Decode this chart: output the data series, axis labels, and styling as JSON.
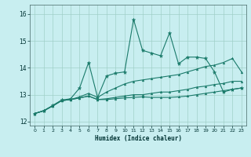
{
  "xlabel": "Humidex (Indice chaleur)",
  "xlim": [
    -0.5,
    23.5
  ],
  "ylim": [
    11.85,
    16.35
  ],
  "yticks": [
    12,
    13,
    14,
    15,
    16
  ],
  "xticks": [
    0,
    1,
    2,
    3,
    4,
    5,
    6,
    7,
    8,
    9,
    10,
    11,
    12,
    13,
    14,
    15,
    16,
    17,
    18,
    19,
    20,
    21,
    22,
    23
  ],
  "bg_color": "#c8eef0",
  "grid_color": "#a0d0c8",
  "line_color": "#1a7a6a",
  "series": [
    {
      "x": [
        0,
        1,
        2,
        3,
        4,
        5,
        6,
        7,
        8,
        9,
        10,
        11,
        12,
        13,
        14,
        15,
        16,
        17,
        18,
        19,
        20,
        21,
        22,
        23
      ],
      "y": [
        12.3,
        12.4,
        12.6,
        12.8,
        12.85,
        13.25,
        14.2,
        12.9,
        13.7,
        13.8,
        13.85,
        15.8,
        14.65,
        14.55,
        14.45,
        15.3,
        14.15,
        14.4,
        14.4,
        14.35,
        13.85,
        13.1,
        13.2,
        13.25
      ],
      "marker": "*",
      "ms": 3.5,
      "lw": 0.8
    },
    {
      "x": [
        0,
        1,
        2,
        3,
        4,
        5,
        6,
        7,
        8,
        9,
        10,
        11,
        12,
        13,
        14,
        15,
        16,
        17,
        18,
        19,
        20,
        21,
        22,
        23
      ],
      "y": [
        12.3,
        12.4,
        12.58,
        12.78,
        12.82,
        12.92,
        13.05,
        12.9,
        13.1,
        13.25,
        13.4,
        13.5,
        13.55,
        13.6,
        13.65,
        13.7,
        13.75,
        13.85,
        13.95,
        14.05,
        14.1,
        14.2,
        14.35,
        13.85
      ],
      "marker": "^",
      "ms": 2.0,
      "lw": 0.8
    },
    {
      "x": [
        0,
        1,
        2,
        3,
        4,
        5,
        6,
        7,
        8,
        9,
        10,
        11,
        12,
        13,
        14,
        15,
        16,
        17,
        18,
        19,
        20,
        21,
        22,
        23
      ],
      "y": [
        12.3,
        12.4,
        12.58,
        12.78,
        12.82,
        12.88,
        12.95,
        12.82,
        12.82,
        12.85,
        12.88,
        12.9,
        12.92,
        12.9,
        12.9,
        12.9,
        12.92,
        12.95,
        13.0,
        13.05,
        13.1,
        13.15,
        13.2,
        13.25
      ],
      "marker": "^",
      "ms": 2.0,
      "lw": 0.8
    },
    {
      "x": [
        0,
        1,
        2,
        3,
        4,
        5,
        6,
        7,
        8,
        9,
        10,
        11,
        12,
        13,
        14,
        15,
        16,
        17,
        18,
        19,
        20,
        21,
        22,
        23
      ],
      "y": [
        12.3,
        12.4,
        12.58,
        12.78,
        12.82,
        12.88,
        12.95,
        12.82,
        12.85,
        12.9,
        12.95,
        13.0,
        13.0,
        13.05,
        13.1,
        13.1,
        13.15,
        13.2,
        13.28,
        13.32,
        13.38,
        13.42,
        13.5,
        13.5
      ],
      "marker": "^",
      "ms": 2.0,
      "lw": 0.8
    }
  ]
}
